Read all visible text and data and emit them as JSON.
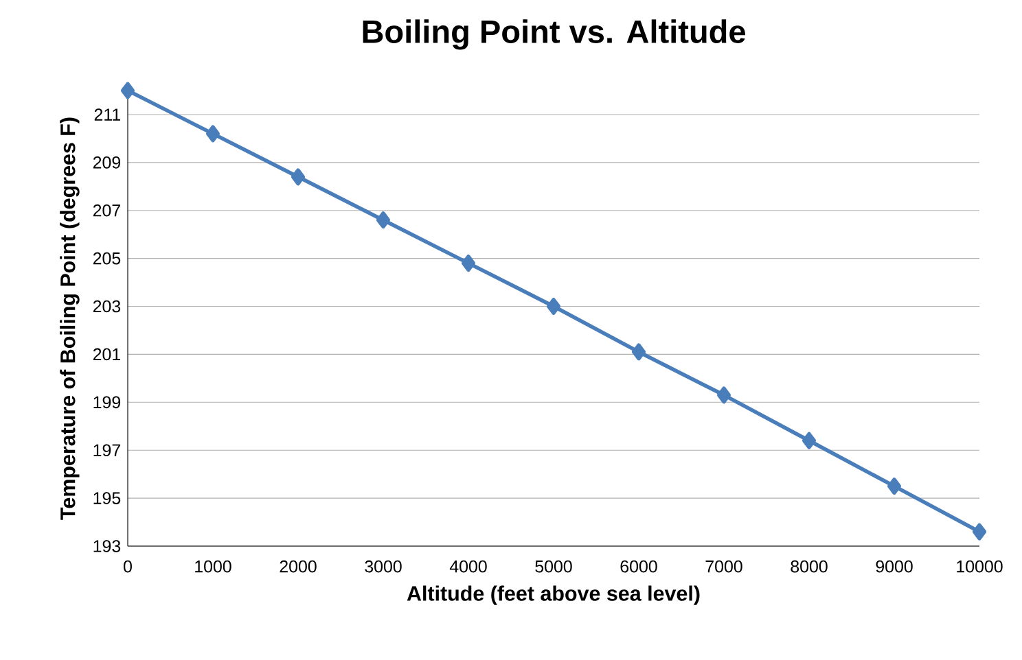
{
  "chart_data": {
    "type": "line",
    "title": "Boiling Point vs. Altitude",
    "xlabel": "Altitude (feet above sea level)",
    "ylabel": "Temperature of Boiling Point (degrees F)",
    "x": [
      0,
      1000,
      2000,
      3000,
      4000,
      5000,
      6000,
      7000,
      8000,
      9000,
      10000
    ],
    "series": [
      {
        "color": "#4a7ebb",
        "values": [
          212,
          210.2,
          208.4,
          206.6,
          204.8,
          203.0,
          201.1,
          199.3,
          197.4,
          195.5,
          193.6
        ]
      }
    ],
    "xlim": [
      0,
      10000
    ],
    "ylim": [
      193,
      212
    ],
    "xticks": [
      0,
      1000,
      2000,
      3000,
      4000,
      5000,
      6000,
      7000,
      8000,
      9000,
      10000
    ],
    "yticks": [
      193,
      195,
      197,
      199,
      201,
      203,
      205,
      207,
      209,
      211
    ],
    "grid": "y",
    "marker": "diamond",
    "line_style": "solid"
  }
}
